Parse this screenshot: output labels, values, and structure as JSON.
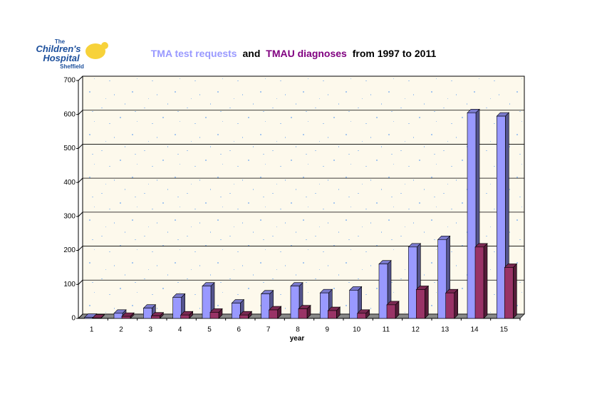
{
  "logo": {
    "lines": [
      "The",
      "Children's",
      "Hospital",
      "Sheffield"
    ]
  },
  "chart_data": {
    "type": "bar3d",
    "title_joiner": "and",
    "title_suffix": "from 1997 to 2011",
    "x_label": "year",
    "categories": [
      "1",
      "2",
      "3",
      "4",
      "5",
      "6",
      "7",
      "8",
      "9",
      "10",
      "11",
      "12",
      "13",
      "14",
      "15"
    ],
    "series": [
      {
        "name": "TMA test requests",
        "color": "#9999ff",
        "title_color": "#9999ff",
        "values": [
          3,
          15,
          30,
          62,
          95,
          45,
          72,
          95,
          75,
          83,
          160,
          210,
          232,
          605,
          595
        ]
      },
      {
        "name": "TMAU diagnoses",
        "color": "#993366",
        "title_color": "#800080",
        "values": [
          1,
          6,
          7,
          10,
          18,
          10,
          25,
          28,
          23,
          15,
          40,
          85,
          75,
          210,
          150
        ]
      }
    ],
    "ylim": [
      0,
      700
    ],
    "yticks": [
      0,
      100,
      200,
      300,
      400,
      500,
      600,
      700
    ],
    "grid": true
  }
}
